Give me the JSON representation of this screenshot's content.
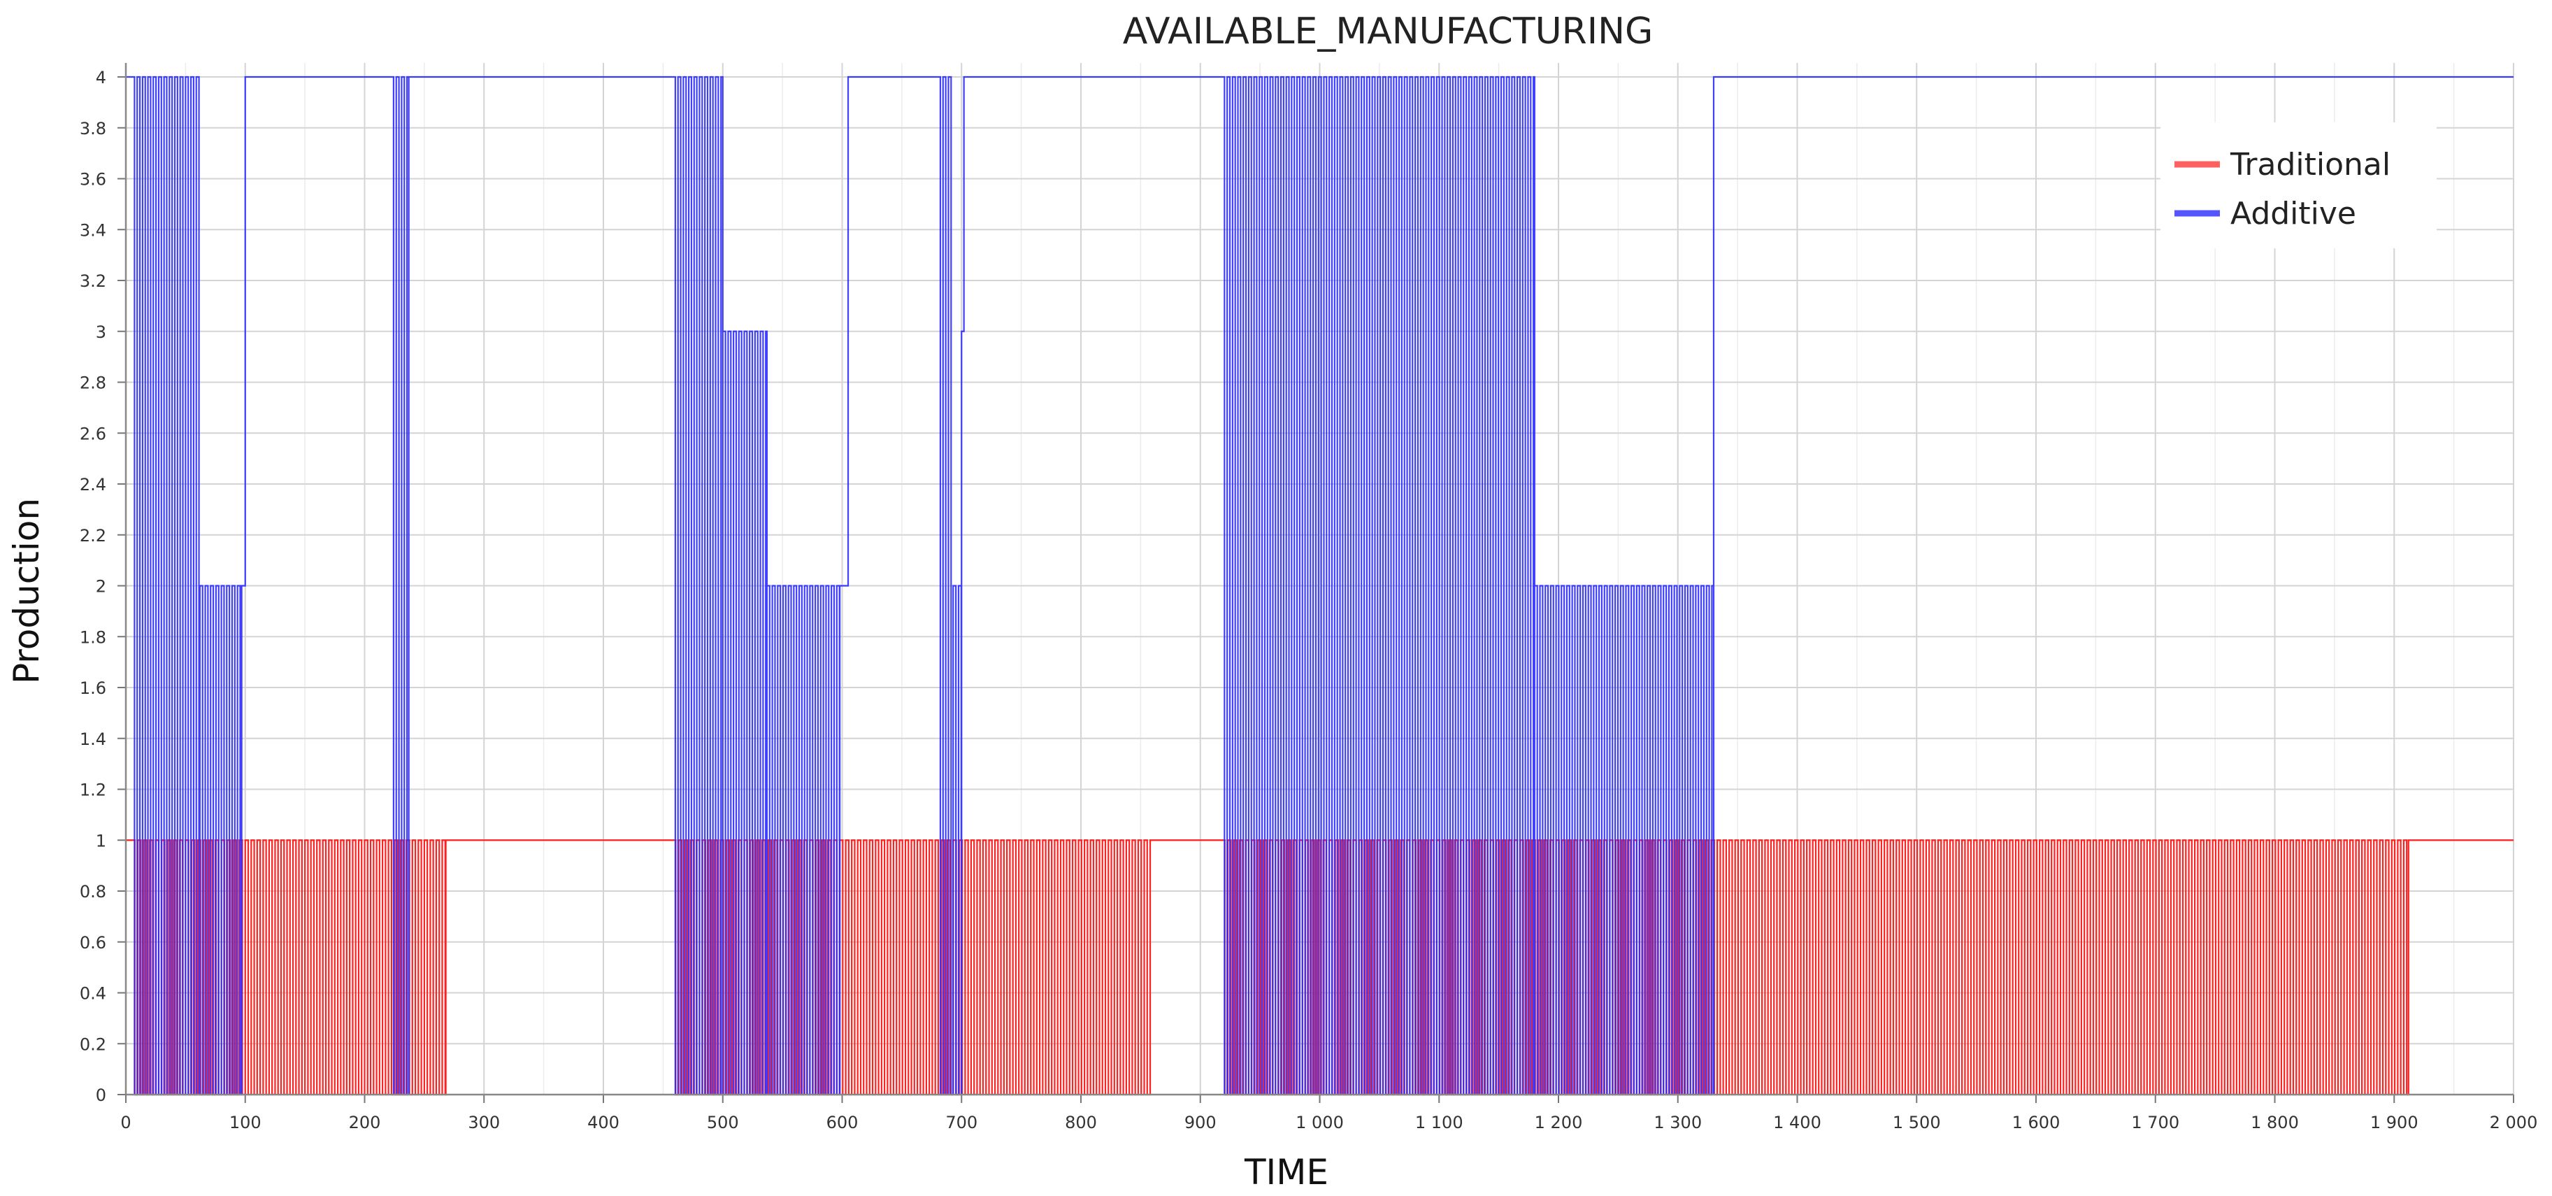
{
  "chart_data": {
    "type": "line",
    "title": "AVAILABLE_MANUFACTURING",
    "xlabel": "TIME",
    "ylabel": "Production",
    "xlim": [
      0,
      2000
    ],
    "ylim": [
      0,
      4
    ],
    "grid": true,
    "legend_position": "top-right",
    "x_ticks": [
      "0",
      "100",
      "200",
      "300",
      "400",
      "500",
      "600",
      "700",
      "800",
      "900",
      "1 000",
      "1 100",
      "1 200",
      "1 300",
      "1 400",
      "1 500",
      "1 600",
      "1 700",
      "1 800",
      "1 900",
      "2 000"
    ],
    "y_ticks": [
      "0",
      "0.2",
      "0.4",
      "0.6",
      "0.8",
      "1",
      "1.2",
      "1.4",
      "1.6",
      "1.8",
      "2",
      "2.2",
      "2.4",
      "2.6",
      "2.8",
      "3",
      "3.2",
      "3.4",
      "3.6",
      "3.8",
      "4"
    ],
    "series": [
      {
        "name": "Traditional",
        "color": "#ff2020",
        "segments": [
          {
            "x": [
              0,
              5
            ],
            "mode": "constant",
            "high": 1
          },
          {
            "x": [
              5,
              268
            ],
            "mode": "oscillating",
            "low": 0,
            "high": 1,
            "period": 5
          },
          {
            "x": [
              268,
              458
            ],
            "mode": "constant",
            "high": 1
          },
          {
            "x": [
              458,
              858
            ],
            "mode": "oscillating",
            "low": 0,
            "high": 1,
            "period": 5
          },
          {
            "x": [
              858,
              918
            ],
            "mode": "constant",
            "high": 1
          },
          {
            "x": [
              918,
              1912
            ],
            "mode": "oscillating",
            "low": 0,
            "high": 1,
            "period": 5
          },
          {
            "x": [
              1912,
              2000
            ],
            "mode": "constant",
            "high": 1
          }
        ]
      },
      {
        "name": "Additive",
        "color": "#2a2aff",
        "segments": [
          {
            "x": [
              0,
              5
            ],
            "mode": "constant",
            "high": 4
          },
          {
            "x": [
              5,
              62
            ],
            "mode": "oscillating",
            "low": 0,
            "high": 4,
            "period": 4.5
          },
          {
            "x": [
              62,
              97
            ],
            "mode": "oscillating",
            "low": 0,
            "high": 2,
            "period": 4.5
          },
          {
            "x": [
              97,
              100
            ],
            "mode": "constant",
            "high": 2
          },
          {
            "x": [
              100,
              222
            ],
            "mode": "constant",
            "high": 4
          },
          {
            "x": [
              222,
              237
            ],
            "mode": "oscillating",
            "low": 0,
            "high": 4,
            "period": 4.5
          },
          {
            "x": [
              237,
              458
            ],
            "mode": "constant",
            "high": 4
          },
          {
            "x": [
              458,
              500
            ],
            "mode": "oscillating",
            "low": 0,
            "high": 4,
            "period": 4.5
          },
          {
            "x": [
              500,
              537
            ],
            "mode": "oscillating",
            "low": 0,
            "high": 3,
            "period": 4.5
          },
          {
            "x": [
              537,
              598
            ],
            "mode": "oscillating",
            "low": 0,
            "high": 2,
            "period": 4.5
          },
          {
            "x": [
              598,
              605
            ],
            "mode": "constant",
            "high": 2
          },
          {
            "x": [
              605,
              680
            ],
            "mode": "constant",
            "high": 4
          },
          {
            "x": [
              680,
              693
            ],
            "mode": "oscillating",
            "low": 0,
            "high": 4,
            "period": 4.5
          },
          {
            "x": [
              693,
              700
            ],
            "mode": "oscillating",
            "low": 0,
            "high": 2,
            "period": 4.5
          },
          {
            "x": [
              700,
              702
            ],
            "mode": "constant",
            "high": 3
          },
          {
            "x": [
              702,
              918
            ],
            "mode": "constant",
            "high": 4
          },
          {
            "x": [
              918,
              1180
            ],
            "mode": "oscillating",
            "low": 0,
            "high": 4,
            "period": 4.5
          },
          {
            "x": [
              1180,
              1330
            ],
            "mode": "oscillating",
            "low": 0,
            "high": 2,
            "period": 4.5
          },
          {
            "x": [
              1330,
              2000
            ],
            "mode": "constant",
            "high": 4
          }
        ]
      }
    ]
  }
}
